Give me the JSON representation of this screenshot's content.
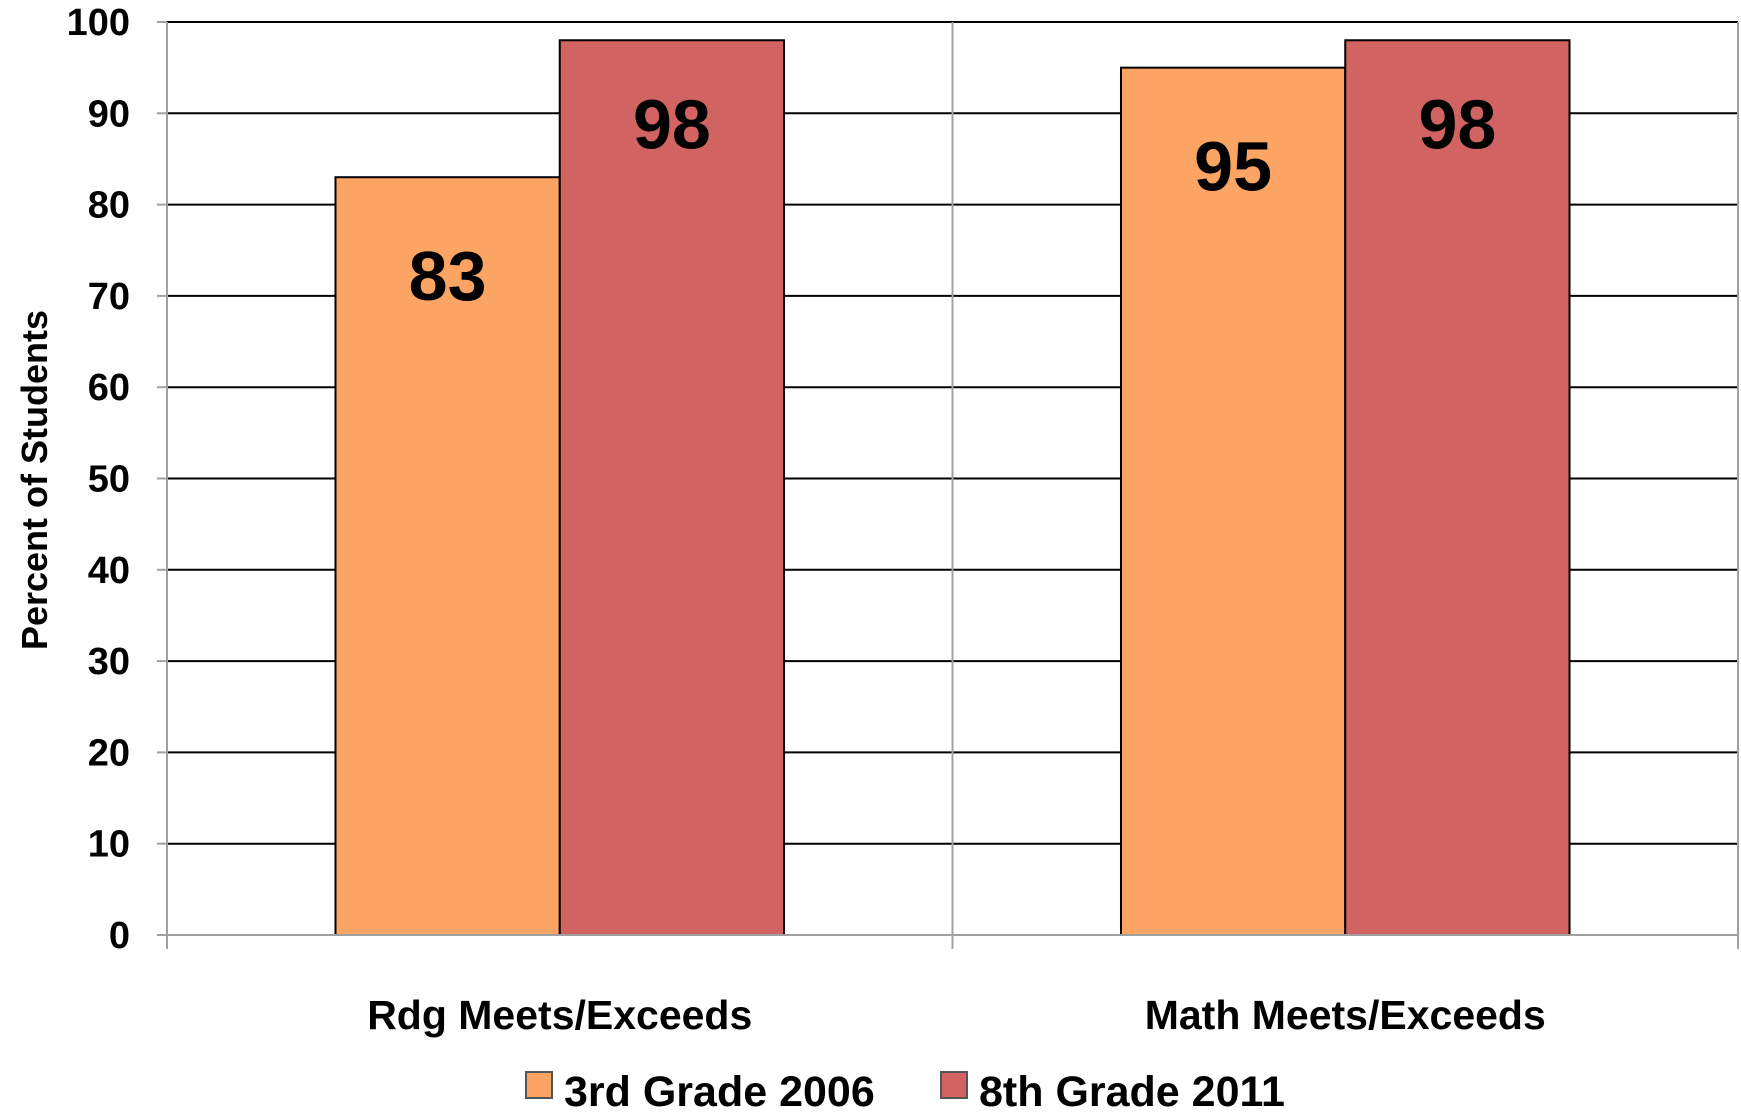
{
  "chart_data": {
    "type": "bar",
    "categories": [
      "Rdg Meets/Exceeds",
      "Math Meets/Exceeds"
    ],
    "series": [
      {
        "name": "3rd Grade 2006",
        "values": [
          83,
          95
        ],
        "color": "#fba464"
      },
      {
        "name": "8th Grade 2011",
        "values": [
          98,
          98
        ],
        "color": "#d16462"
      }
    ],
    "ylabel": "Percent of Students",
    "xlabel": "",
    "ylim": [
      0,
      100
    ],
    "yticks": [
      0,
      10,
      20,
      30,
      40,
      50,
      60,
      70,
      80,
      90,
      100
    ],
    "grid": true,
    "legend": "bottom",
    "data_labels": true
  }
}
